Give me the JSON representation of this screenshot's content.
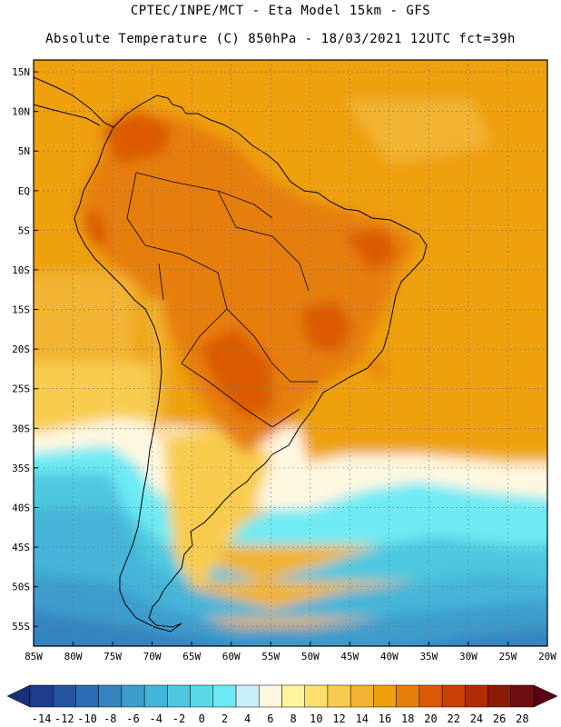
{
  "header": {
    "line1": "CPTEC/INPE/MCT -  Eta Model 15km - GFS",
    "line2": "Absolute Temperature (C) 850hPa - 18/03/2021 12UTC fct=39h"
  },
  "map": {
    "lat_labels": [
      "15N",
      "10N",
      "5N",
      "EQ",
      "5S",
      "10S",
      "15S",
      "20S",
      "25S",
      "30S",
      "35S",
      "40S",
      "45S",
      "50S",
      "55S"
    ],
    "lon_labels": [
      "85W",
      "80W",
      "75W",
      "70W",
      "65W",
      "60W",
      "55W",
      "50W",
      "45W",
      "40W",
      "35W",
      "30W",
      "25W",
      "20W"
    ],
    "lon_range": [
      -85,
      -20
    ],
    "lat_range": [
      -57.5,
      16.5
    ]
  },
  "colorbar": {
    "labels": [
      "-14",
      "-12",
      "-10",
      "-8",
      "-6",
      "-4",
      "-2",
      "0",
      "2",
      "4",
      "6",
      "8",
      "10",
      "12",
      "14",
      "16",
      "18",
      "20",
      "22",
      "24",
      "26",
      "28"
    ],
    "colors": [
      "#1e3c8c",
      "#2454a0",
      "#2a6cb4",
      "#3484c0",
      "#3c9ccc",
      "#44b4d8",
      "#4ec8e0",
      "#5ad8e8",
      "#6eeaf4",
      "#c8f0fa",
      "#fff8e0",
      "#fef49c",
      "#fbe070",
      "#f8cc50",
      "#f2b432",
      "#eea00e",
      "#e67e0a",
      "#dc5a06",
      "#c84004",
      "#b02c04",
      "#8c1c08",
      "#6e0e10"
    ],
    "below_color": "#1a2f78",
    "above_color": "#5c0018"
  }
}
